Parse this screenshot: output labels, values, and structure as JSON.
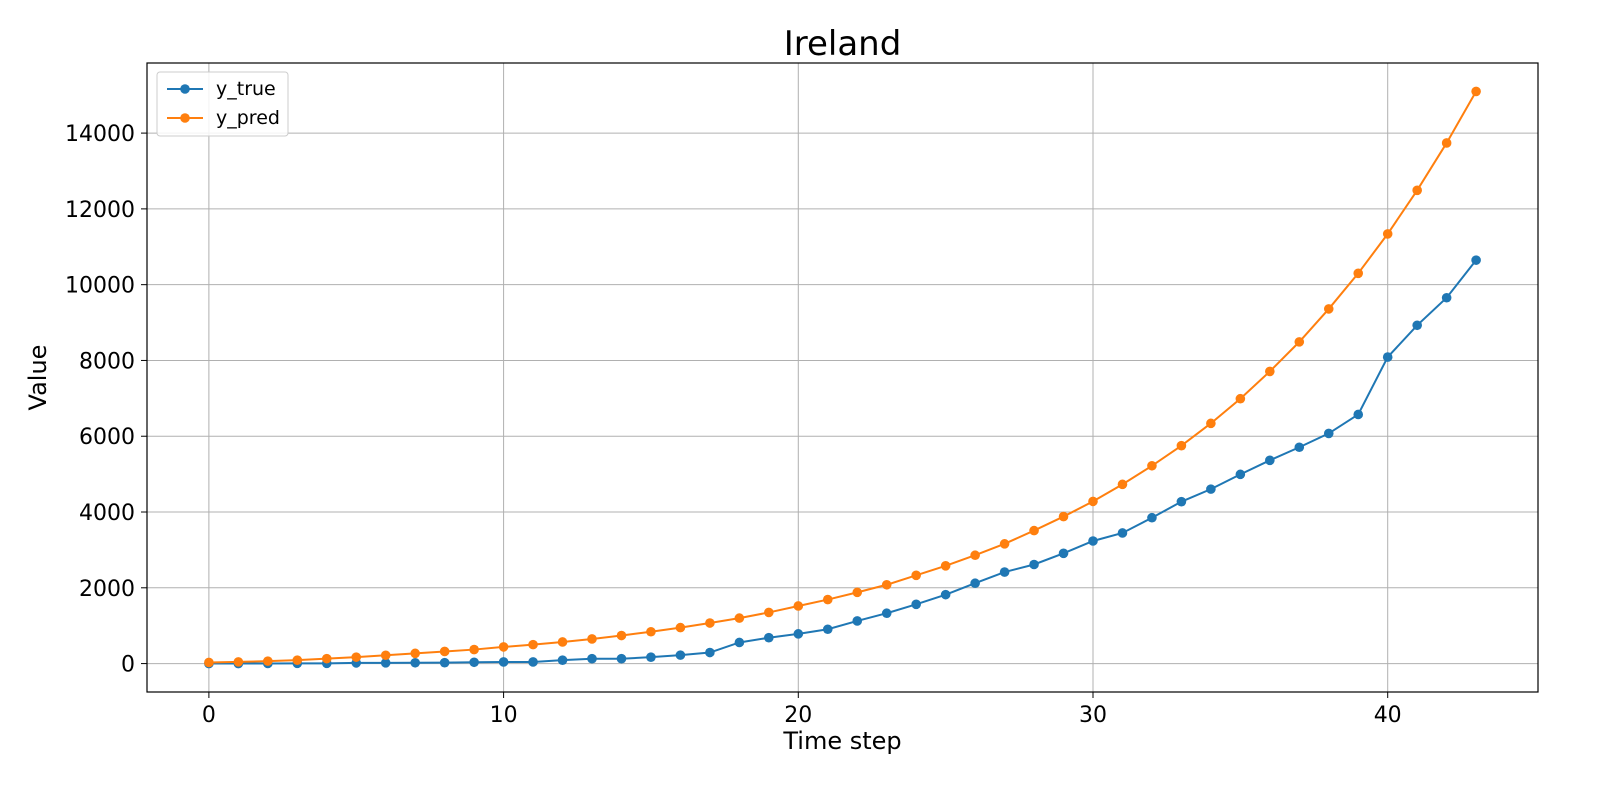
{
  "chart_data": {
    "type": "line",
    "title": "Ireland",
    "xlabel": "Time step",
    "ylabel": "Value",
    "xlim": [
      -2.1,
      45.1
    ],
    "ylim": [
      -750,
      15850
    ],
    "xticks": [
      0,
      10,
      20,
      30,
      40
    ],
    "yticks": [
      0,
      2000,
      4000,
      6000,
      8000,
      10000,
      12000,
      14000
    ],
    "grid": true,
    "legend": "upper-left",
    "x": [
      0,
      1,
      2,
      3,
      4,
      5,
      6,
      7,
      8,
      9,
      10,
      11,
      12,
      13,
      14,
      15,
      16,
      17,
      18,
      19,
      20,
      21,
      22,
      23,
      24,
      25,
      26,
      27,
      28,
      29,
      30,
      31,
      32,
      33,
      34,
      35,
      36,
      37,
      38,
      39,
      40,
      41,
      42,
      43
    ],
    "series": [
      {
        "name": "y_true",
        "color": "#1f77b4",
        "values": [
          1,
          1,
          2,
          6,
          6,
          18,
          19,
          21,
          24,
          34,
          43,
          43,
          90,
          129,
          129,
          169,
          223,
          292,
          557,
          683,
          785,
          906,
          1125,
          1329,
          1564,
          1819,
          2121,
          2415,
          2615,
          2910,
          3235,
          3447,
          3849,
          4273,
          4604,
          4994,
          5364,
          5709,
          6074,
          6574,
          8089,
          8928,
          9655,
          10647
        ]
      },
      {
        "name": "y_pred",
        "color": "#ff7f0e",
        "values": [
          30,
          45,
          65,
          90,
          130,
          170,
          220,
          270,
          320,
          370,
          440,
          500,
          570,
          650,
          740,
          840,
          950,
          1070,
          1200,
          1350,
          1520,
          1690,
          1880,
          2080,
          2330,
          2580,
          2860,
          3160,
          3510,
          3880,
          4280,
          4730,
          5220,
          5750,
          6340,
          6990,
          7710,
          8490,
          9360,
          10300,
          11340,
          12490,
          13740,
          15100
        ]
      }
    ]
  }
}
